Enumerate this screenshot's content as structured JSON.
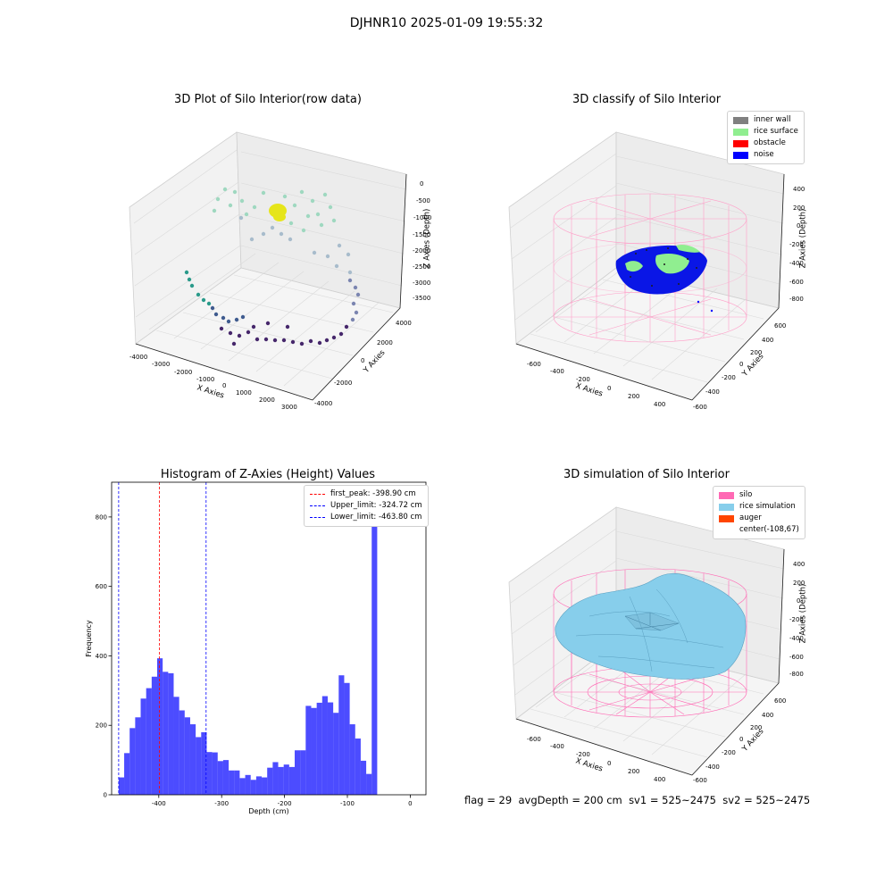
{
  "figure": {
    "suptitle": "DJHNR10 2025-01-09 19:55:32",
    "status": {
      "flag": "flag = 29",
      "avg_depth": "avgDepth = 200 cm",
      "sv1": "sv1 = 525~2475",
      "sv2": "sv2 = 525~2475"
    }
  },
  "panels": {
    "raw": {
      "title": "3D Plot of Silo Interior(row data)",
      "xlabel": "X Axies",
      "ylabel": "Y Axies",
      "zlabel": "Z Axies (Depth)",
      "x_ticks": [
        "-4000",
        "-3000",
        "-2000",
        "-1000",
        "0",
        "1000",
        "2000",
        "3000"
      ],
      "y_ticks": [
        "-4000",
        "-2000",
        "0",
        "2000",
        "4000"
      ],
      "z_ticks": [
        "0",
        "-500",
        "-1000",
        "-1500",
        "-2000",
        "-2500",
        "-3000",
        "-3500"
      ]
    },
    "classify": {
      "title": "3D classify of Silo Interior",
      "xlabel": "X Axies",
      "ylabel": "Y Axies",
      "zlabel": "Z Axies (Depth)",
      "x_ticks": [
        "-600",
        "-400",
        "-200",
        "0",
        "200",
        "400"
      ],
      "y_ticks": [
        "-600",
        "-400",
        "-200",
        "0",
        "200",
        "400",
        "600"
      ],
      "z_ticks": [
        "400",
        "200",
        "0",
        "-200",
        "-400",
        "-600",
        "-800"
      ],
      "legend": [
        {
          "label": "inner wall",
          "color": "#808080"
        },
        {
          "label": "rice surface",
          "color": "#90ee90"
        },
        {
          "label": "obstacle",
          "color": "#ff0000"
        },
        {
          "label": "noise",
          "color": "#0000ff"
        }
      ]
    },
    "simulation": {
      "title": "3D simulation of Silo Interior",
      "xlabel": "X Axies",
      "ylabel": "Y Axies",
      "zlabel": "Z Axies (Depth)",
      "x_ticks": [
        "-600",
        "-400",
        "-200",
        "0",
        "200",
        "400"
      ],
      "y_ticks": [
        "-600",
        "-400",
        "-200",
        "0",
        "200",
        "400",
        "600"
      ],
      "z_ticks": [
        "400",
        "200",
        "0",
        "-200",
        "-400",
        "-600",
        "-800"
      ],
      "legend": [
        {
          "label": "silo",
          "color": "#ff69b4"
        },
        {
          "label": "rice simulation",
          "color": "#87ceeb"
        },
        {
          "label": "auger",
          "color": "#ff4500"
        },
        {
          "label": "center(-108,67)",
          "color": ""
        }
      ]
    }
  },
  "chart_data": [
    {
      "type": "scatter",
      "title": "3D Plot of Silo Interior(row data)",
      "xlabel": "X Axies",
      "ylabel": "Y Axies",
      "zlabel": "Z Axies (Depth)",
      "xlim": [
        -4500,
        3500
      ],
      "ylim": [
        -4500,
        4500
      ],
      "zlim": [
        -3800,
        200
      ]
    },
    {
      "type": "scatter",
      "title": "3D classify of Silo Interior",
      "xlabel": "X Axies",
      "ylabel": "Y Axies",
      "zlabel": "Z Axies (Depth)",
      "series": [
        {
          "name": "inner wall",
          "color": "#808080"
        },
        {
          "name": "rice surface",
          "color": "#90ee90"
        },
        {
          "name": "obstacle",
          "color": "#ff0000"
        },
        {
          "name": "noise",
          "color": "#0000ff"
        }
      ]
    },
    {
      "type": "bar",
      "title": "Histogram of Z-Axies (Height) Values",
      "xlabel": "Depth (cm)",
      "ylabel": "Frequency",
      "xlim": [
        -475,
        25
      ],
      "ylim": [
        0,
        900
      ],
      "x_ticks": [
        -400,
        -300,
        -200,
        -100,
        0
      ],
      "y_ticks": [
        0,
        200,
        400,
        600,
        800
      ],
      "bar_color": "#0000ff",
      "bin_width": 8.75,
      "bins": [
        {
          "x": -463.8,
          "value": 50
        },
        {
          "x": -455.05,
          "value": 120
        },
        {
          "x": -446.3,
          "value": 192
        },
        {
          "x": -437.55,
          "value": 223
        },
        {
          "x": -428.8,
          "value": 277
        },
        {
          "x": -420.05,
          "value": 307
        },
        {
          "x": -411.3,
          "value": 340
        },
        {
          "x": -402.55,
          "value": 393
        },
        {
          "x": -393.8,
          "value": 354
        },
        {
          "x": -385.05,
          "value": 350
        },
        {
          "x": -376.3,
          "value": 282
        },
        {
          "x": -367.55,
          "value": 243
        },
        {
          "x": -358.8,
          "value": 223
        },
        {
          "x": -350.05,
          "value": 203
        },
        {
          "x": -341.3,
          "value": 166
        },
        {
          "x": -332.55,
          "value": 180
        },
        {
          "x": -323.8,
          "value": 123
        },
        {
          "x": -315.05,
          "value": 122
        },
        {
          "x": -306.3,
          "value": 97
        },
        {
          "x": -297.55,
          "value": 100
        },
        {
          "x": -288.8,
          "value": 70
        },
        {
          "x": -280.05,
          "value": 70
        },
        {
          "x": -271.3,
          "value": 48
        },
        {
          "x": -262.55,
          "value": 57
        },
        {
          "x": -253.8,
          "value": 43
        },
        {
          "x": -245.05,
          "value": 53
        },
        {
          "x": -236.3,
          "value": 50
        },
        {
          "x": -227.55,
          "value": 78
        },
        {
          "x": -218.8,
          "value": 94
        },
        {
          "x": -210.05,
          "value": 80
        },
        {
          "x": -201.3,
          "value": 87
        },
        {
          "x": -192.55,
          "value": 80
        },
        {
          "x": -183.8,
          "value": 128
        },
        {
          "x": -175.05,
          "value": 128
        },
        {
          "x": -166.3,
          "value": 256
        },
        {
          "x": -157.55,
          "value": 250
        },
        {
          "x": -148.8,
          "value": 265
        },
        {
          "x": -140.05,
          "value": 284
        },
        {
          "x": -131.3,
          "value": 266
        },
        {
          "x": -122.55,
          "value": 236
        },
        {
          "x": -113.8,
          "value": 344
        },
        {
          "x": -105.05,
          "value": 322
        },
        {
          "x": -96.3,
          "value": 203
        },
        {
          "x": -87.55,
          "value": 162
        },
        {
          "x": -78.8,
          "value": 98
        },
        {
          "x": -70.05,
          "value": 60
        },
        {
          "x": -61.3,
          "value": 855
        }
      ],
      "lines": [
        {
          "label": "first_peak: -398.90 cm",
          "x": -398.9,
          "color": "#ff0000"
        },
        {
          "label": "Upper_limit: -324.72 cm",
          "x": -324.72,
          "color": "#0000ff"
        },
        {
          "label": "Lower_limit: -463.80 cm",
          "x": -463.8,
          "color": "#0000ff"
        }
      ]
    },
    {
      "type": "surface",
      "title": "3D simulation of Silo Interior",
      "xlabel": "X Axies",
      "ylabel": "Y Axies",
      "zlabel": "Z Axies (Depth)",
      "series": [
        {
          "name": "silo",
          "color": "#ff69b4"
        },
        {
          "name": "rice simulation",
          "color": "#87ceeb"
        },
        {
          "name": "auger",
          "color": "#ff4500"
        },
        {
          "name": "center(-108,67)"
        }
      ]
    }
  ]
}
